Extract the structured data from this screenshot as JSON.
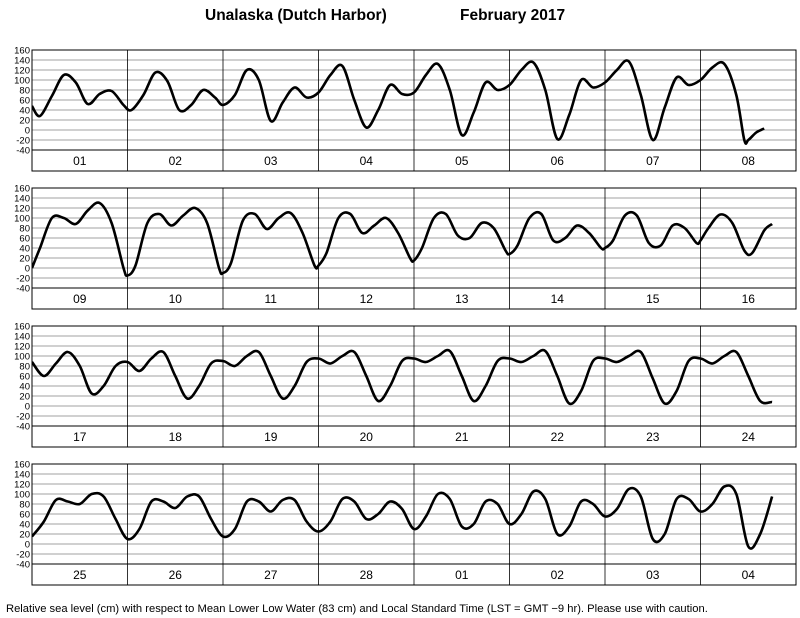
{
  "title_location": "Unalaska (Dutch Harbor)",
  "title_month": "February   2017",
  "footer": "Relative sea level (cm) with respect to Mean Lower Low Water (83 cm) and Local Standard Time (LST = GMT −9 hr). Please use with caution.",
  "chart_data": {
    "type": "line",
    "title": "Unalaska (Dutch Harbor)   February 2017",
    "ylabel": "Relative sea level (cm)",
    "ylim": [
      -40,
      160
    ],
    "yticks": [
      160,
      140,
      120,
      100,
      80,
      60,
      40,
      20,
      0,
      -20,
      -40
    ],
    "grid": "vertical lines at day boundaries; horizontal lines at each 20 cm tick",
    "x_unit": "hours from start of panel",
    "panels": [
      {
        "days": [
          "01",
          "02",
          "03",
          "04",
          "05",
          "06",
          "07",
          "08"
        ],
        "x": [
          0,
          2,
          5,
          8,
          11,
          14,
          17,
          21,
          24,
          27,
          30,
          33,
          36,
          39,
          42,
          45,
          48,
          51,
          53,
          56,
          59,
          62,
          65,
          69,
          72,
          75,
          78,
          81,
          84,
          87,
          90,
          93,
          96,
          99,
          102,
          105,
          108,
          111,
          114,
          117,
          120,
          123,
          126,
          129,
          132,
          135,
          138,
          141,
          144,
          147,
          150,
          153,
          156,
          159,
          162,
          165,
          168,
          171,
          174,
          177,
          180,
          183,
          186,
          189,
          192
        ],
        "y": [
          50,
          28,
          70,
          110,
          88,
          52,
          75,
          75,
          45,
          52,
          115,
          95,
          35,
          48,
          83,
          60,
          50,
          78,
          122,
          110,
          20,
          50,
          85,
          65,
          68,
          115,
          128,
          30,
          5,
          60,
          90,
          72,
          78,
          120,
          132,
          70,
          -10,
          20,
          95,
          88,
          80,
          125,
          135,
          55,
          -15,
          20,
          100,
          95,
          87,
          130,
          137,
          40,
          -20,
          30,
          98,
          95,
          90,
          120,
          137,
          60,
          -20,
          5,
          5,
          5,
          5
        ],
        "points": [
          [
            0,
            48
          ],
          [
            2,
            28
          ],
          [
            5,
            68
          ],
          [
            8,
            110
          ],
          [
            11,
            95
          ],
          [
            14,
            52
          ],
          [
            17,
            72
          ],
          [
            20,
            78
          ],
          [
            23,
            50
          ],
          [
            25,
            40
          ],
          [
            28,
            70
          ],
          [
            31,
            115
          ],
          [
            34,
            98
          ],
          [
            37,
            40
          ],
          [
            40,
            50
          ],
          [
            43,
            80
          ],
          [
            46,
            65
          ],
          [
            48,
            50
          ],
          [
            51,
            70
          ],
          [
            54,
            120
          ],
          [
            57,
            100
          ],
          [
            60,
            18
          ],
          [
            63,
            55
          ],
          [
            66,
            85
          ],
          [
            69,
            65
          ],
          [
            72,
            75
          ],
          [
            75,
            110
          ],
          [
            78,
            128
          ],
          [
            81,
            60
          ],
          [
            84,
            5
          ],
          [
            87,
            40
          ],
          [
            90,
            90
          ],
          [
            93,
            72
          ],
          [
            96,
            75
          ],
          [
            99,
            110
          ],
          [
            102,
            132
          ],
          [
            105,
            80
          ],
          [
            108,
            -10
          ],
          [
            111,
            35
          ],
          [
            114,
            95
          ],
          [
            117,
            80
          ],
          [
            120,
            90
          ],
          [
            123,
            120
          ],
          [
            126,
            135
          ],
          [
            129,
            80
          ],
          [
            132,
            -18
          ],
          [
            135,
            30
          ],
          [
            138,
            100
          ],
          [
            141,
            85
          ],
          [
            144,
            95
          ],
          [
            147,
            120
          ],
          [
            150,
            137
          ],
          [
            153,
            70
          ],
          [
            156,
            -20
          ],
          [
            159,
            45
          ],
          [
            162,
            105
          ],
          [
            165,
            90
          ],
          [
            168,
            100
          ],
          [
            171,
            125
          ],
          [
            174,
            132
          ],
          [
            177,
            70
          ],
          [
            179,
            -20
          ],
          [
            180,
            -20
          ],
          [
            182,
            -5
          ],
          [
            184,
            3
          ]
        ]
      },
      {
        "days": [
          "09",
          "10",
          "11",
          "12",
          "13",
          "14",
          "15",
          "16"
        ],
        "points": [
          [
            0,
            0
          ],
          [
            2,
            40
          ],
          [
            5,
            100
          ],
          [
            8,
            100
          ],
          [
            11,
            88
          ],
          [
            14,
            115
          ],
          [
            17,
            130
          ],
          [
            20,
            90
          ],
          [
            23,
            0
          ],
          [
            24,
            -15
          ],
          [
            26,
            5
          ],
          [
            29,
            90
          ],
          [
            32,
            108
          ],
          [
            35,
            85
          ],
          [
            38,
            105
          ],
          [
            41,
            120
          ],
          [
            44,
            90
          ],
          [
            47,
            0
          ],
          [
            48,
            -10
          ],
          [
            50,
            10
          ],
          [
            53,
            95
          ],
          [
            56,
            108
          ],
          [
            59,
            78
          ],
          [
            62,
            100
          ],
          [
            65,
            110
          ],
          [
            68,
            70
          ],
          [
            71,
            5
          ],
          [
            72,
            5
          ],
          [
            74,
            30
          ],
          [
            77,
            100
          ],
          [
            80,
            108
          ],
          [
            83,
            70
          ],
          [
            86,
            85
          ],
          [
            89,
            100
          ],
          [
            92,
            70
          ],
          [
            95,
            20
          ],
          [
            96,
            15
          ],
          [
            98,
            40
          ],
          [
            101,
            100
          ],
          [
            104,
            108
          ],
          [
            107,
            65
          ],
          [
            110,
            60
          ],
          [
            113,
            90
          ],
          [
            116,
            80
          ],
          [
            119,
            35
          ],
          [
            120,
            28
          ],
          [
            122,
            45
          ],
          [
            125,
            100
          ],
          [
            128,
            108
          ],
          [
            131,
            55
          ],
          [
            134,
            60
          ],
          [
            137,
            85
          ],
          [
            140,
            70
          ],
          [
            143,
            40
          ],
          [
            144,
            40
          ],
          [
            146,
            55
          ],
          [
            149,
            105
          ],
          [
            152,
            105
          ],
          [
            155,
            50
          ],
          [
            158,
            45
          ],
          [
            161,
            85
          ],
          [
            164,
            80
          ],
          [
            167,
            50
          ],
          [
            168,
            55
          ],
          [
            170,
            80
          ],
          [
            173,
            107
          ],
          [
            176,
            90
          ],
          [
            179,
            35
          ],
          [
            181,
            30
          ],
          [
            184,
            75
          ],
          [
            186,
            88
          ]
        ]
      },
      {
        "days": [
          "17",
          "18",
          "19",
          "20",
          "21",
          "22",
          "23",
          "24"
        ],
        "points": [
          [
            0,
            88
          ],
          [
            3,
            60
          ],
          [
            6,
            85
          ],
          [
            9,
            108
          ],
          [
            12,
            80
          ],
          [
            15,
            25
          ],
          [
            18,
            40
          ],
          [
            21,
            80
          ],
          [
            24,
            88
          ],
          [
            27,
            70
          ],
          [
            30,
            95
          ],
          [
            33,
            108
          ],
          [
            36,
            60
          ],
          [
            39,
            15
          ],
          [
            42,
            40
          ],
          [
            45,
            85
          ],
          [
            48,
            90
          ],
          [
            51,
            80
          ],
          [
            54,
            100
          ],
          [
            57,
            108
          ],
          [
            60,
            60
          ],
          [
            63,
            15
          ],
          [
            66,
            40
          ],
          [
            69,
            88
          ],
          [
            72,
            95
          ],
          [
            75,
            85
          ],
          [
            78,
            100
          ],
          [
            81,
            108
          ],
          [
            84,
            60
          ],
          [
            87,
            10
          ],
          [
            90,
            40
          ],
          [
            93,
            90
          ],
          [
            96,
            95
          ],
          [
            99,
            88
          ],
          [
            102,
            100
          ],
          [
            105,
            110
          ],
          [
            108,
            60
          ],
          [
            111,
            10
          ],
          [
            114,
            40
          ],
          [
            117,
            90
          ],
          [
            120,
            95
          ],
          [
            123,
            88
          ],
          [
            126,
            100
          ],
          [
            129,
            110
          ],
          [
            132,
            60
          ],
          [
            135,
            5
          ],
          [
            138,
            30
          ],
          [
            141,
            90
          ],
          [
            144,
            95
          ],
          [
            147,
            88
          ],
          [
            150,
            100
          ],
          [
            153,
            108
          ],
          [
            156,
            55
          ],
          [
            159,
            5
          ],
          [
            162,
            30
          ],
          [
            165,
            90
          ],
          [
            168,
            95
          ],
          [
            171,
            85
          ],
          [
            174,
            100
          ],
          [
            177,
            108
          ],
          [
            180,
            60
          ],
          [
            183,
            10
          ],
          [
            186,
            8
          ]
        ]
      },
      {
        "days": [
          "25",
          "26",
          "27",
          "28",
          "01",
          "02",
          "03",
          "04"
        ],
        "points": [
          [
            0,
            15
          ],
          [
            3,
            45
          ],
          [
            6,
            88
          ],
          [
            9,
            85
          ],
          [
            12,
            80
          ],
          [
            15,
            100
          ],
          [
            18,
            95
          ],
          [
            21,
            50
          ],
          [
            24,
            10
          ],
          [
            27,
            30
          ],
          [
            30,
            85
          ],
          [
            33,
            85
          ],
          [
            36,
            72
          ],
          [
            39,
            95
          ],
          [
            42,
            95
          ],
          [
            45,
            50
          ],
          [
            48,
            15
          ],
          [
            51,
            30
          ],
          [
            54,
            85
          ],
          [
            57,
            85
          ],
          [
            60,
            65
          ],
          [
            63,
            88
          ],
          [
            66,
            88
          ],
          [
            69,
            45
          ],
          [
            72,
            25
          ],
          [
            75,
            45
          ],
          [
            78,
            90
          ],
          [
            81,
            85
          ],
          [
            84,
            50
          ],
          [
            87,
            60
          ],
          [
            90,
            85
          ],
          [
            93,
            70
          ],
          [
            96,
            30
          ],
          [
            99,
            55
          ],
          [
            102,
            100
          ],
          [
            105,
            90
          ],
          [
            108,
            35
          ],
          [
            111,
            40
          ],
          [
            114,
            85
          ],
          [
            117,
            80
          ],
          [
            120,
            40
          ],
          [
            123,
            60
          ],
          [
            126,
            105
          ],
          [
            129,
            90
          ],
          [
            132,
            20
          ],
          [
            135,
            35
          ],
          [
            138,
            85
          ],
          [
            141,
            80
          ],
          [
            144,
            55
          ],
          [
            147,
            70
          ],
          [
            150,
            110
          ],
          [
            153,
            95
          ],
          [
            156,
            10
          ],
          [
            159,
            20
          ],
          [
            162,
            90
          ],
          [
            165,
            90
          ],
          [
            168,
            65
          ],
          [
            171,
            80
          ],
          [
            174,
            115
          ],
          [
            177,
            100
          ],
          [
            180,
            -5
          ],
          [
            183,
            20
          ],
          [
            186,
            95
          ]
        ]
      }
    ]
  }
}
